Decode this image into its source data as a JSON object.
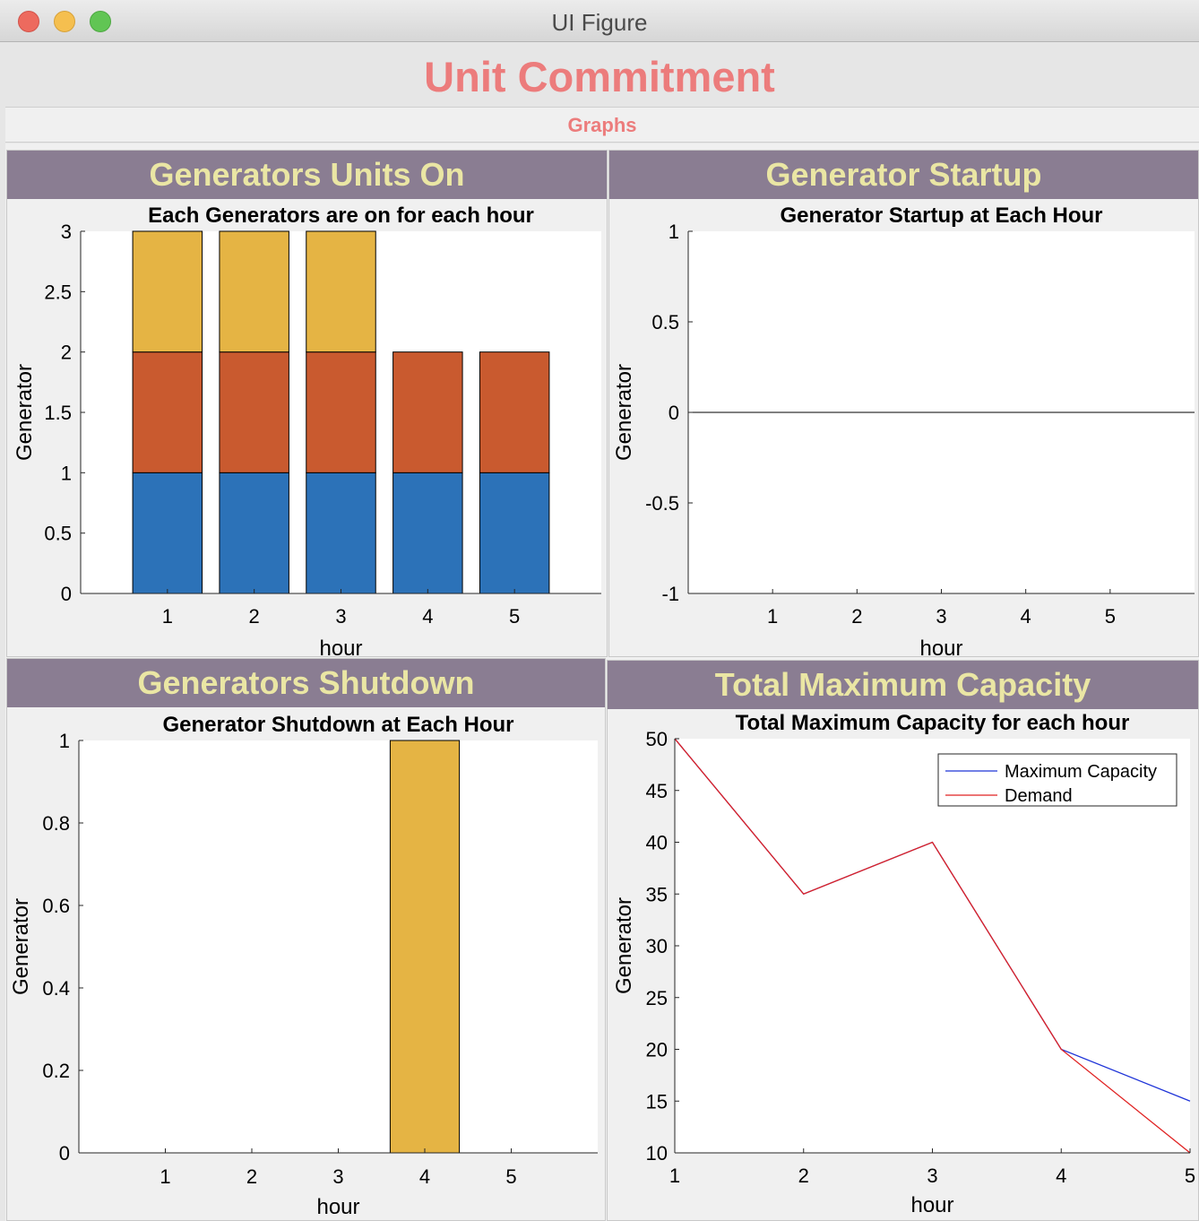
{
  "window": {
    "title": "UI Figure"
  },
  "app": {
    "title": "Unit Commitment"
  },
  "tabs": [
    {
      "label": "Graphs"
    }
  ],
  "panels": {
    "units_on": {
      "header": "Generators Units On"
    },
    "startup": {
      "header": "Generator Startup"
    },
    "shutdown": {
      "header": "Generators Shutdown"
    },
    "capacity": {
      "header": "Total Maximum Capacity"
    }
  },
  "colors": {
    "series_blue": "#2c72b8",
    "series_orange": "#c95a2f",
    "series_yellow": "#e5b444",
    "line_blue": "#1f34d8",
    "line_red": "#e02222",
    "title_accent": "#ec7c7c",
    "panel_header_bg": "#8a7d92",
    "panel_header_text": "#eae6a4"
  },
  "chart_data": [
    {
      "id": "units_on",
      "type": "bar",
      "stacked": true,
      "title": "Each Generators are on for each hour",
      "xlabel": "hour",
      "ylabel": "Generator",
      "categories": [
        "1",
        "2",
        "3",
        "4",
        "5"
      ],
      "xlim": [
        0,
        6
      ],
      "ylim": [
        0,
        3
      ],
      "yticks": [
        "0",
        "0.5",
        "1",
        "1.5",
        "2",
        "2.5",
        "3"
      ],
      "series": [
        {
          "values": [
            1,
            1,
            1,
            1,
            1
          ]
        },
        {
          "values": [
            1,
            1,
            1,
            1,
            1
          ]
        },
        {
          "values": [
            1,
            1,
            1,
            0,
            0
          ]
        }
      ]
    },
    {
      "id": "startup",
      "type": "bar",
      "stacked": true,
      "title": "Generator Startup at Each Hour",
      "xlabel": "hour",
      "ylabel": "Generator",
      "categories": [
        "1",
        "2",
        "3",
        "4",
        "5"
      ],
      "xlim": [
        0,
        6
      ],
      "ylim": [
        -1,
        1
      ],
      "yticks": [
        "-1",
        "-0.5",
        "0",
        "0.5",
        "1"
      ],
      "series": [
        {
          "values": [
            0,
            0,
            0,
            0,
            0
          ]
        },
        {
          "values": [
            0,
            0,
            0,
            0,
            0
          ]
        },
        {
          "values": [
            0,
            0,
            0,
            0,
            0
          ]
        }
      ]
    },
    {
      "id": "shutdown",
      "type": "bar",
      "stacked": true,
      "title": "Generator Shutdown at Each Hour",
      "xlabel": "hour",
      "ylabel": "Generator",
      "categories": [
        "1",
        "2",
        "3",
        "4",
        "5"
      ],
      "xlim": [
        0,
        6
      ],
      "ylim": [
        0,
        1
      ],
      "yticks": [
        "0",
        "0.2",
        "0.4",
        "0.6",
        "0.8",
        "1"
      ],
      "series": [
        {
          "values": [
            0,
            0,
            0,
            0,
            0
          ]
        },
        {
          "values": [
            0,
            0,
            0,
            0,
            0
          ]
        },
        {
          "values": [
            0,
            0,
            0,
            1,
            0
          ]
        }
      ]
    },
    {
      "id": "capacity",
      "type": "line",
      "title": "Total Maximum Capacity for each hour",
      "xlabel": "hour",
      "ylabel": "Generator",
      "x": [
        1,
        2,
        3,
        4,
        5
      ],
      "xticks": [
        "1",
        "2",
        "3",
        "4",
        "5"
      ],
      "xlim": [
        1,
        5
      ],
      "ylim": [
        10,
        50
      ],
      "yticks": [
        "10",
        "15",
        "20",
        "25",
        "30",
        "35",
        "40",
        "45",
        "50"
      ],
      "legend_position": "top-right",
      "series": [
        {
          "name": "Maximum Capacity",
          "values": [
            50,
            35,
            40,
            20,
            15
          ]
        },
        {
          "name": "Demand",
          "values": [
            50,
            35,
            40,
            20,
            10
          ]
        }
      ]
    }
  ]
}
